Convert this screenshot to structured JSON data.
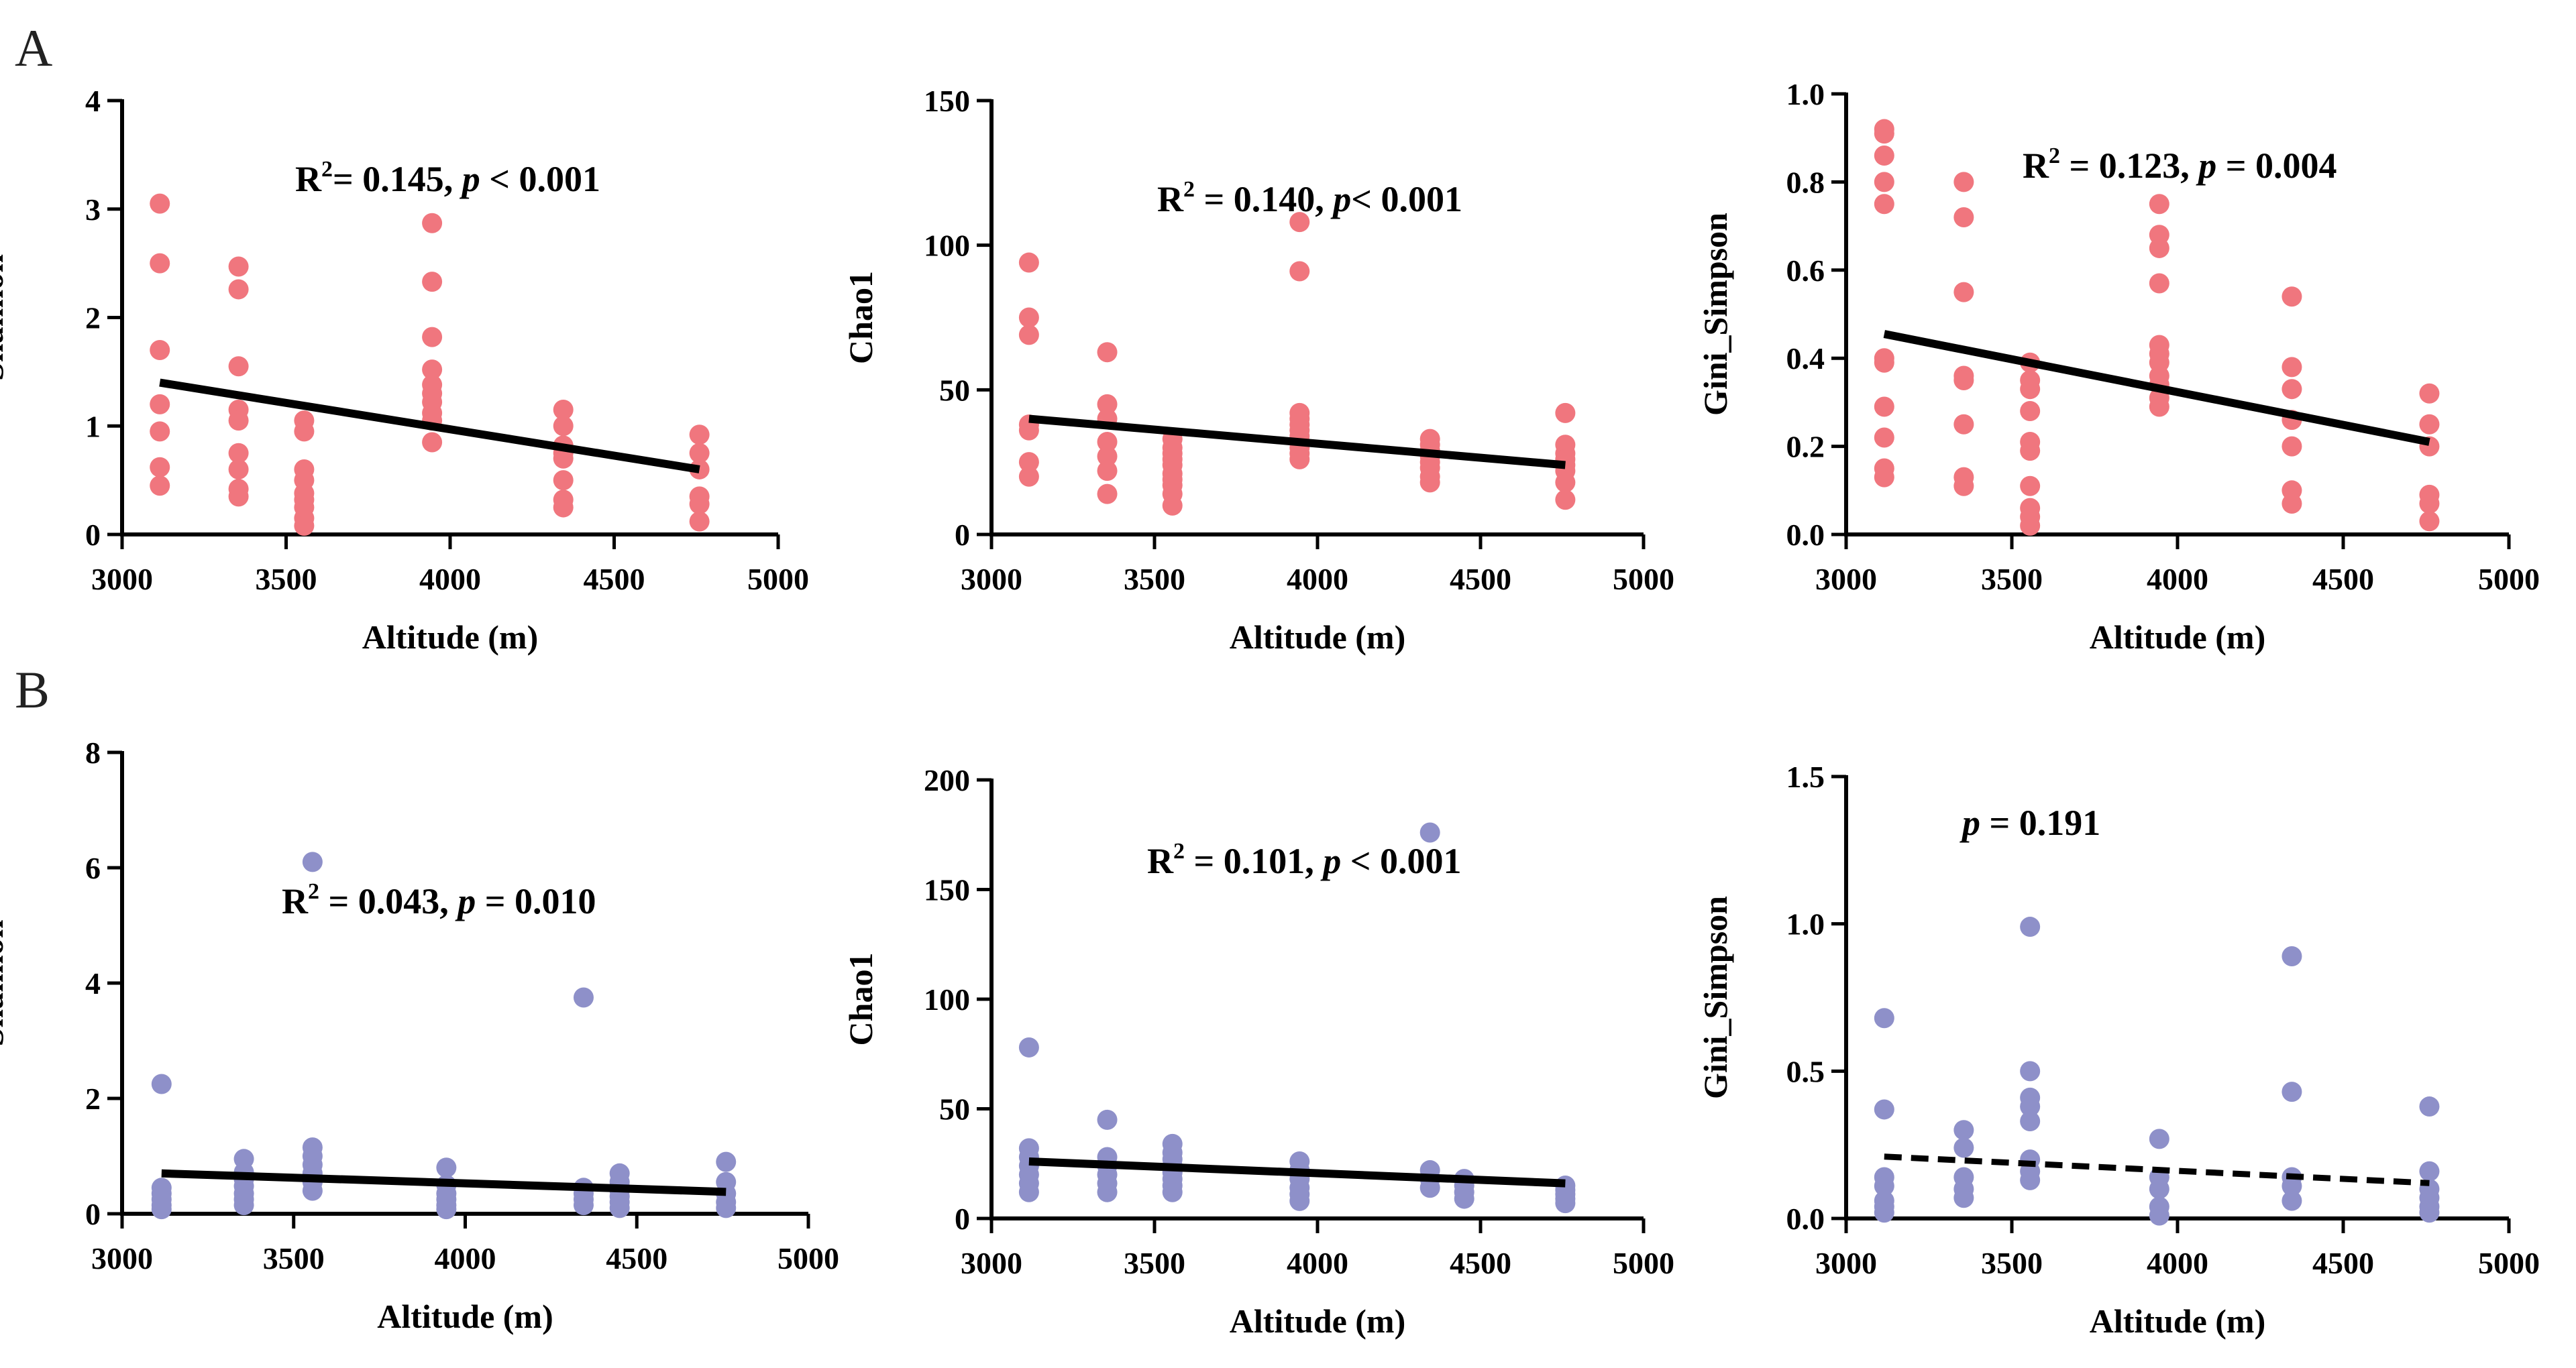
{
  "panel_labels": [
    "A",
    "B"
  ],
  "colors": {
    "rowA": "#F0767E",
    "rowB": "#8E90C9",
    "fit": "#000000"
  },
  "chart_data": [
    {
      "id": "A1",
      "type": "scatter",
      "row": "A",
      "xlabel": "Altitude (m)",
      "ylabel": "Shannon",
      "xlim": [
        3000,
        5000
      ],
      "ylim": [
        0,
        4
      ],
      "xticks": [
        "3000",
        "3500",
        "4000",
        "4500",
        "5000"
      ],
      "yticks": [
        "0",
        "1",
        "2",
        "3",
        "4"
      ],
      "annotation": {
        "r2": "R",
        "exp": "2",
        "text": "= 0.145, ",
        "p": "p",
        "ptext": " < 0.001"
      },
      "fit": {
        "x": [
          3115,
          4760
        ],
        "y": [
          1.4,
          0.6
        ],
        "style": "solid"
      },
      "x": [
        3115,
        3115,
        3115,
        3115,
        3115,
        3115,
        3115,
        3355,
        3355,
        3355,
        3355,
        3355,
        3355,
        3355,
        3355,
        3355,
        3555,
        3555,
        3555,
        3555,
        3555,
        3555,
        3555,
        3555,
        3555,
        3945,
        3945,
        3945,
        3945,
        3945,
        3945,
        3945,
        3945,
        3945,
        3945,
        4345,
        4345,
        4345,
        4345,
        4345,
        4345,
        4345,
        4345,
        4760,
        4760,
        4760,
        4760,
        4760,
        4760
      ],
      "y": [
        3.05,
        2.5,
        1.7,
        1.2,
        0.95,
        0.62,
        0.45,
        2.47,
        2.26,
        1.55,
        1.15,
        1.05,
        0.75,
        0.6,
        0.42,
        0.35,
        1.05,
        0.95,
        0.6,
        0.5,
        0.38,
        0.32,
        0.25,
        0.15,
        0.08,
        2.87,
        2.33,
        1.82,
        1.52,
        1.38,
        1.3,
        1.22,
        1.12,
        1.05,
        0.85,
        1.15,
        1.0,
        0.82,
        0.75,
        0.7,
        0.5,
        0.32,
        0.25,
        0.92,
        0.75,
        0.6,
        0.35,
        0.28,
        0.12
      ]
    },
    {
      "id": "A2",
      "type": "scatter",
      "row": "A",
      "xlabel": "Altitude (m)",
      "ylabel": "Chao1",
      "xlim": [
        3000,
        5000
      ],
      "ylim": [
        0,
        150
      ],
      "xticks": [
        "3000",
        "3500",
        "4000",
        "4500",
        "5000"
      ],
      "yticks": [
        "0",
        "50",
        "100",
        "150"
      ],
      "annotation": {
        "r2": "R",
        "exp": "2",
        "text": " = 0.140, ",
        "p": "p",
        "ptext": "< 0.001"
      },
      "fit": {
        "x": [
          3115,
          4760
        ],
        "y": [
          40,
          24
        ],
        "style": "solid"
      },
      "x": [
        3115,
        3115,
        3115,
        3115,
        3115,
        3115,
        3115,
        3355,
        3355,
        3355,
        3355,
        3355,
        3355,
        3355,
        3555,
        3555,
        3555,
        3555,
        3555,
        3555,
        3555,
        3555,
        3555,
        3555,
        3945,
        3945,
        3945,
        3945,
        3945,
        3945,
        3945,
        3945,
        3945,
        3945,
        3945,
        4345,
        4345,
        4345,
        4345,
        4345,
        4345,
        4345,
        4345,
        4760,
        4760,
        4760,
        4760,
        4760,
        4760,
        4760,
        4760
      ],
      "y": [
        94,
        75,
        69,
        38,
        36,
        25,
        20,
        63,
        45,
        40,
        32,
        27,
        22,
        14,
        33,
        30,
        28,
        26,
        24,
        21,
        19,
        17,
        14,
        10,
        108,
        91,
        42,
        40,
        38,
        36,
        34,
        32,
        30,
        28,
        26,
        33,
        31,
        29,
        27,
        25,
        23,
        20,
        18,
        42,
        31,
        28,
        26,
        24,
        22,
        18,
        12
      ]
    },
    {
      "id": "A3",
      "type": "scatter",
      "row": "A",
      "xlabel": "Altitude (m)",
      "ylabel": "Gini_Simpson",
      "xlim": [
        3000,
        5000
      ],
      "ylim": [
        0,
        1.0
      ],
      "xticks": [
        "3000",
        "3500",
        "4000",
        "4500",
        "5000"
      ],
      "yticks": [
        "0.0",
        "0.2",
        "0.4",
        "0.6",
        "0.8",
        "1.0"
      ],
      "annotation": {
        "r2": "R",
        "exp": "2",
        "text": " = 0.123, ",
        "p": "p",
        "ptext": " = 0.004"
      },
      "fit": {
        "x": [
          3115,
          4760
        ],
        "y": [
          0.455,
          0.21
        ],
        "style": "solid"
      },
      "x": [
        3115,
        3115,
        3115,
        3115,
        3115,
        3115,
        3115,
        3115,
        3115,
        3115,
        3115,
        3355,
        3355,
        3355,
        3355,
        3355,
        3355,
        3355,
        3355,
        3555,
        3555,
        3555,
        3555,
        3555,
        3555,
        3555,
        3555,
        3555,
        3555,
        3945,
        3945,
        3945,
        3945,
        3945,
        3945,
        3945,
        3945,
        3945,
        3945,
        3945,
        4345,
        4345,
        4345,
        4345,
        4345,
        4345,
        4345,
        4760,
        4760,
        4760,
        4760,
        4760,
        4760
      ],
      "y": [
        0.92,
        0.91,
        0.86,
        0.8,
        0.75,
        0.4,
        0.39,
        0.29,
        0.22,
        0.15,
        0.13,
        0.8,
        0.72,
        0.55,
        0.36,
        0.35,
        0.25,
        0.13,
        0.11,
        0.39,
        0.35,
        0.33,
        0.28,
        0.21,
        0.19,
        0.11,
        0.06,
        0.04,
        0.02,
        0.75,
        0.68,
        0.65,
        0.57,
        0.43,
        0.41,
        0.39,
        0.36,
        0.34,
        0.31,
        0.29,
        0.54,
        0.38,
        0.33,
        0.26,
        0.2,
        0.1,
        0.07,
        0.32,
        0.25,
        0.2,
        0.09,
        0.07,
        0.03
      ]
    },
    {
      "id": "B1",
      "type": "scatter",
      "row": "B",
      "xlabel": "Altitude (m)",
      "ylabel": "Shannon",
      "xlim": [
        3000,
        5000
      ],
      "ylim": [
        0,
        8
      ],
      "xticks": [
        "3000",
        "3500",
        "4000",
        "4500",
        "5000"
      ],
      "yticks": [
        "0",
        "2",
        "4",
        "6",
        "8"
      ],
      "annotation": {
        "r2": "R",
        "exp": "2",
        "text": " = 0.043, ",
        "p": "p",
        "ptext": " = 0.010"
      },
      "fit": {
        "x": [
          3115,
          4760
        ],
        "y": [
          0.7,
          0.38
        ],
        "style": "solid"
      },
      "x": [
        3115,
        3115,
        3115,
        3115,
        3115,
        3115,
        3355,
        3355,
        3355,
        3355,
        3355,
        3355,
        3355,
        3555,
        3555,
        3555,
        3555,
        3555,
        3555,
        3555,
        3945,
        3945,
        3945,
        3945,
        3945,
        3945,
        4345,
        4345,
        4345,
        4345,
        4345,
        4450,
        4450,
        4450,
        4450,
        4450,
        4450,
        4760,
        4760,
        4760,
        4760,
        4760
      ],
      "y": [
        2.25,
        0.45,
        0.35,
        0.25,
        0.15,
        0.08,
        0.95,
        0.72,
        0.6,
        0.48,
        0.35,
        0.25,
        0.15,
        6.1,
        1.15,
        1.0,
        0.85,
        0.7,
        0.55,
        0.4,
        0.8,
        0.5,
        0.35,
        0.25,
        0.15,
        0.08,
        3.75,
        0.45,
        0.35,
        0.25,
        0.15,
        0.7,
        0.55,
        0.4,
        0.3,
        0.2,
        0.1,
        0.9,
        0.55,
        0.35,
        0.2,
        0.1
      ]
    },
    {
      "id": "B2",
      "type": "scatter",
      "row": "B",
      "xlabel": "Altitude (m)",
      "ylabel": "Chao1",
      "xlim": [
        3000,
        5000
      ],
      "ylim": [
        0,
        200
      ],
      "xticks": [
        "3000",
        "3500",
        "4000",
        "4500",
        "5000"
      ],
      "yticks": [
        "0",
        "50",
        "100",
        "150",
        "200"
      ],
      "annotation": {
        "r2": "R",
        "exp": "2",
        "text": " = 0.101, ",
        "p": "p",
        "ptext": " < 0.001"
      },
      "fit": {
        "x": [
          3115,
          4760
        ],
        "y": [
          26,
          16
        ],
        "style": "solid"
      },
      "x": [
        3115,
        3115,
        3115,
        3115,
        3115,
        3115,
        3115,
        3355,
        3355,
        3355,
        3355,
        3355,
        3355,
        3555,
        3555,
        3555,
        3555,
        3555,
        3555,
        3555,
        3555,
        3945,
        3945,
        3945,
        3945,
        3945,
        3945,
        4345,
        4345,
        4345,
        4345,
        4450,
        4450,
        4450,
        4450,
        4760,
        4760,
        4760,
        4760,
        4760
      ],
      "y": [
        78,
        32,
        28,
        24,
        20,
        16,
        12,
        45,
        28,
        24,
        20,
        16,
        12,
        34,
        30,
        27,
        24,
        21,
        18,
        15,
        12,
        26,
        22,
        18,
        14,
        11,
        8,
        176,
        22,
        18,
        14,
        18,
        15,
        12,
        9,
        15,
        13,
        11,
        9,
        7
      ]
    },
    {
      "id": "B3",
      "type": "scatter",
      "row": "B",
      "xlabel": "Altitude (m)",
      "ylabel": "Gini_Simpson",
      "xlim": [
        3000,
        5000
      ],
      "ylim": [
        0,
        1.5
      ],
      "xticks": [
        "3000",
        "3500",
        "4000",
        "4500",
        "5000"
      ],
      "yticks": [
        "0.0",
        "0.5",
        "1.0",
        "1.5"
      ],
      "annotation": {
        "r2": "",
        "exp": "",
        "text": "",
        "p": "p",
        "ptext": " = 0.191"
      },
      "fit": {
        "x": [
          3115,
          4760
        ],
        "y": [
          0.21,
          0.12
        ],
        "style": "dashed"
      },
      "x": [
        3115,
        3115,
        3115,
        3115,
        3115,
        3115,
        3115,
        3355,
        3355,
        3355,
        3355,
        3355,
        3555,
        3555,
        3555,
        3555,
        3555,
        3555,
        3555,
        3555,
        3945,
        3945,
        3945,
        3945,
        3945,
        4345,
        4345,
        4345,
        4345,
        4345,
        4760,
        4760,
        4760,
        4760,
        4760,
        4760
      ],
      "y": [
        0.68,
        0.37,
        0.14,
        0.11,
        0.06,
        0.04,
        0.02,
        0.3,
        0.24,
        0.14,
        0.1,
        0.07,
        0.99,
        0.5,
        0.41,
        0.38,
        0.33,
        0.2,
        0.16,
        0.13,
        0.27,
        0.14,
        0.1,
        0.04,
        0.01,
        0.89,
        0.43,
        0.14,
        0.11,
        0.06,
        0.38,
        0.16,
        0.1,
        0.07,
        0.04,
        0.02
      ]
    }
  ]
}
